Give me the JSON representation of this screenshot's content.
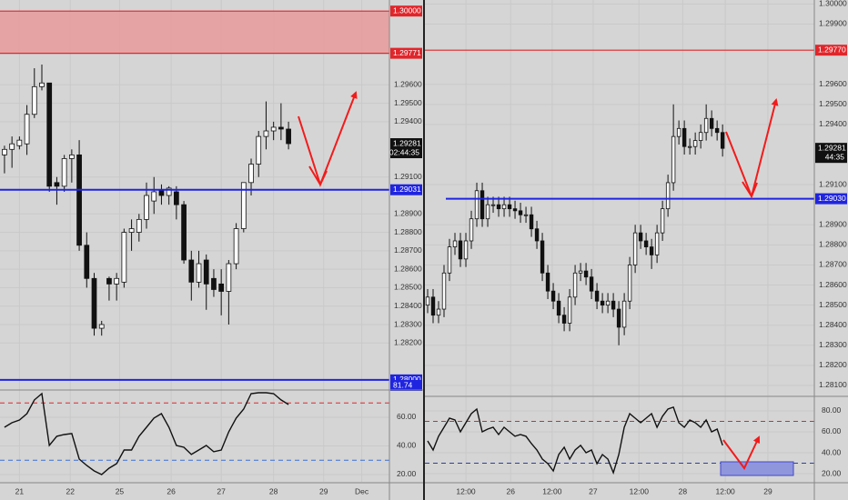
{
  "chart_data": [
    {
      "type": "candlestick",
      "grid": true,
      "open": [
        1.2922,
        1.2925,
        1.2927,
        1.2928,
        1.2944,
        1.2959,
        1.2961,
        1.2907,
        1.2905,
        1.292,
        1.2922,
        1.2873,
        1.2855,
        1.2828,
        1.2855,
        1.2852,
        1.2853,
        1.288,
        1.288,
        1.2887,
        1.2897,
        1.2903,
        1.29,
        1.2902,
        1.2895,
        1.2865,
        1.2853,
        1.2865,
        1.2855,
        1.2852,
        1.2848,
        1.2863,
        1.2882,
        1.2907,
        1.2917,
        1.2932,
        1.2935,
        1.2937,
        1.2936
      ],
      "high": [
        1.2927,
        1.2932,
        1.2932,
        1.2949,
        1.2969,
        1.2971,
        1.2961,
        1.291,
        1.2922,
        1.2925,
        1.293,
        1.288,
        1.2858,
        1.2832,
        1.2856,
        1.2858,
        1.2882,
        1.2887,
        1.289,
        1.2907,
        1.291,
        1.2906,
        1.2905,
        1.2905,
        1.2897,
        1.287,
        1.287,
        1.2868,
        1.286,
        1.286,
        1.2865,
        1.2885,
        1.2907,
        1.292,
        1.2935,
        1.2951,
        1.294,
        1.295,
        1.294
      ],
      "low": [
        1.2912,
        1.2915,
        1.2925,
        1.2922,
        1.2942,
        1.2957,
        1.2902,
        1.2895,
        1.2902,
        1.2907,
        1.287,
        1.285,
        1.2824,
        1.2824,
        1.2843,
        1.2843,
        1.285,
        1.287,
        1.2875,
        1.2882,
        1.289,
        1.2895,
        1.2895,
        1.2887,
        1.2863,
        1.2843,
        1.285,
        1.2838,
        1.2845,
        1.2835,
        1.283,
        1.286,
        1.288,
        1.29,
        1.291,
        1.2925,
        1.293,
        1.293,
        1.2925
      ],
      "close": [
        1.2925,
        1.2928,
        1.293,
        1.2944,
        1.2959,
        1.2961,
        1.2905,
        1.2905,
        1.292,
        1.2922,
        1.2873,
        1.2855,
        1.2828,
        1.283,
        1.2852,
        1.2855,
        1.288,
        1.2882,
        1.2887,
        1.29,
        1.2902,
        1.29,
        1.2904,
        1.2895,
        1.2865,
        1.2853,
        1.2863,
        1.2852,
        1.2849,
        1.2848,
        1.2863,
        1.2882,
        1.2907,
        1.2917,
        1.2932,
        1.2935,
        1.2937,
        1.2936,
        1.29281
      ],
      "xlim": [
        -0.6,
        51.5
      ],
      "xticks": [
        {
          "value": 2,
          "label": "21"
        },
        {
          "value": 8.8,
          "label": "22"
        },
        {
          "value": 15.4,
          "label": "25"
        },
        {
          "value": 22.3,
          "label": "26"
        },
        {
          "value": 29,
          "label": "27"
        },
        {
          "value": 36,
          "label": "28"
        },
        {
          "value": 42.7,
          "label": "29"
        },
        {
          "value": 47.8,
          "label": "Dec"
        }
      ],
      "ylim": [
        1.2795,
        1.3006
      ],
      "yticks": [
        {
          "value": 1.282,
          "label": "1.28200"
        },
        {
          "value": 1.283,
          "label": "1.28300"
        },
        {
          "value": 1.284,
          "label": "1.28400"
        },
        {
          "value": 1.285,
          "label": "1.28500"
        },
        {
          "value": 1.286,
          "label": "1.28600"
        },
        {
          "value": 1.287,
          "label": "1.28700"
        },
        {
          "value": 1.288,
          "label": "1.28800"
        },
        {
          "value": 1.289,
          "label": "1.28900"
        },
        {
          "value": 1.291,
          "label": "1.29100"
        },
        {
          "value": 1.294,
          "label": "1.29400"
        },
        {
          "value": 1.295,
          "label": "1.29500"
        },
        {
          "value": 1.296,
          "label": "1.29600"
        }
      ],
      "zone": {
        "from": 1.29771,
        "to": 1.3,
        "color": "#e89a9a"
      },
      "levels": [
        {
          "value": 1.3,
          "label": "1.30000",
          "color": "#e0262b"
        },
        {
          "value": 1.29771,
          "label": "1.29771",
          "color": "#e0262b"
        },
        {
          "value": 1.29031,
          "label": "1.29031",
          "color": "#1f24e0"
        },
        {
          "value": 1.28,
          "label": "1.28000",
          "color": "#1f24e0"
        }
      ],
      "last": {
        "value": 1.29281,
        "label": "1.29281",
        "countdown": "02:44:35"
      },
      "annotation": "81.74",
      "rsi": {
        "values": [
          53.0,
          56.2,
          58.1,
          62.5,
          72.1,
          76.5,
          40.3,
          46.7,
          47.9,
          48.6,
          30.8,
          26.3,
          22.5,
          20.0,
          24.4,
          27.6,
          37.1,
          37.1,
          46.7,
          53.0,
          59.4,
          62.5,
          53.0,
          40.3,
          39.0,
          34.0,
          37.1,
          40.3,
          35.9,
          37.1,
          49.8,
          59.4,
          65.7,
          76.5,
          77.1,
          77.1,
          76.5,
          72.1,
          68.9
        ],
        "ylim": [
          14.9,
          78.4
        ],
        "yticks": [
          {
            "value": 20,
            "label": "20.00"
          },
          {
            "value": 40,
            "label": "40.00"
          },
          {
            "value": 60,
            "label": "60.00"
          }
        ],
        "levels": [
          {
            "value": 70,
            "color": "#e0262b"
          },
          {
            "value": 30,
            "color": "#3a6fd8"
          }
        ]
      }
    },
    {
      "type": "candlestick",
      "grid": true,
      "open": [
        1.285,
        1.2854,
        1.2845,
        1.2848,
        1.2866,
        1.2879,
        1.2882,
        1.2873,
        1.2882,
        1.2893,
        1.2907,
        1.2893,
        1.29,
        1.29,
        1.2898,
        1.29,
        1.2898,
        1.2897,
        1.2895,
        1.2895,
        1.2888,
        1.2882,
        1.2866,
        1.2857,
        1.2852,
        1.2845,
        1.2841,
        1.2854,
        1.2866,
        1.2867,
        1.2864,
        1.2857,
        1.2852,
        1.285,
        1.2852,
        1.2848,
        1.2839,
        1.2852,
        1.287,
        1.2886,
        1.2882,
        1.2879,
        1.2875,
        1.2886,
        1.2898,
        1.2911,
        1.2934,
        1.2938,
        1.2929,
        1.2929,
        1.2932,
        1.2936,
        1.2943,
        1.2938,
        1.2936
      ],
      "high": [
        1.2858,
        1.2858,
        1.2852,
        1.287,
        1.2883,
        1.2886,
        1.2886,
        1.2886,
        1.2897,
        1.2911,
        1.2911,
        1.2904,
        1.2904,
        1.2904,
        1.2904,
        1.2904,
        1.2902,
        1.2901,
        1.2899,
        1.2899,
        1.2892,
        1.2886,
        1.287,
        1.2861,
        1.2856,
        1.2849,
        1.2858,
        1.287,
        1.2871,
        1.2871,
        1.2868,
        1.2861,
        1.2856,
        1.2856,
        1.2856,
        1.2852,
        1.2856,
        1.2874,
        1.289,
        1.289,
        1.2886,
        1.2883,
        1.289,
        1.2902,
        1.2915,
        1.295,
        1.2942,
        1.2942,
        1.2933,
        1.2936,
        1.294,
        1.295,
        1.2947,
        1.2942,
        1.294
      ],
      "low": [
        1.2846,
        1.2841,
        1.2841,
        1.2844,
        1.2862,
        1.2875,
        1.2869,
        1.2869,
        1.2878,
        1.2889,
        1.2889,
        1.2889,
        1.2896,
        1.2894,
        1.2894,
        1.2894,
        1.2893,
        1.2891,
        1.2891,
        1.2884,
        1.2878,
        1.2862,
        1.2853,
        1.2848,
        1.2841,
        1.2837,
        1.2837,
        1.285,
        1.2862,
        1.286,
        1.2853,
        1.2848,
        1.2846,
        1.2846,
        1.2844,
        1.283,
        1.2835,
        1.2848,
        1.2866,
        1.2878,
        1.2875,
        1.2868,
        1.2871,
        1.2882,
        1.2894,
        1.2907,
        1.293,
        1.2925,
        1.2925,
        1.2925,
        1.2928,
        1.2932,
        1.2934,
        1.2932,
        1.2924
      ],
      "close": [
        1.2854,
        1.2845,
        1.2848,
        1.2866,
        1.2879,
        1.2882,
        1.2873,
        1.2882,
        1.2893,
        1.2907,
        1.2893,
        1.29,
        1.29,
        1.2898,
        1.29,
        1.2898,
        1.2897,
        1.2895,
        1.2895,
        1.2888,
        1.2882,
        1.2866,
        1.2857,
        1.2852,
        1.2845,
        1.2841,
        1.2854,
        1.2866,
        1.2867,
        1.2864,
        1.2857,
        1.2852,
        1.285,
        1.2852,
        1.2848,
        1.2839,
        1.2852,
        1.287,
        1.2886,
        1.2882,
        1.2879,
        1.2875,
        1.2886,
        1.2898,
        1.2911,
        1.2934,
        1.2938,
        1.2929,
        1.2929,
        1.2932,
        1.2936,
        1.2943,
        1.2938,
        1.2936,
        1.29281
      ],
      "xlim": [
        -0.5,
        70.8
      ],
      "xticks": [
        {
          "value": 7,
          "label": "12:00"
        },
        {
          "value": 15.2,
          "label": "26"
        },
        {
          "value": 22.8,
          "label": "12:00"
        },
        {
          "value": 30.3,
          "label": "27"
        },
        {
          "value": 38.7,
          "label": "12:00"
        },
        {
          "value": 46.7,
          "label": "28"
        },
        {
          "value": 54.5,
          "label": "12:00"
        },
        {
          "value": 62.3,
          "label": "29"
        }
      ],
      "ylim": [
        1.2805,
        1.3002
      ],
      "yticks": [
        {
          "value": 1.281,
          "label": "1.28100"
        },
        {
          "value": 1.282,
          "label": "1.28200"
        },
        {
          "value": 1.283,
          "label": "1.28300"
        },
        {
          "value": 1.284,
          "label": "1.28400"
        },
        {
          "value": 1.285,
          "label": "1.28500"
        },
        {
          "value": 1.286,
          "label": "1.28600"
        },
        {
          "value": 1.287,
          "label": "1.28700"
        },
        {
          "value": 1.288,
          "label": "1.28800"
        },
        {
          "value": 1.289,
          "label": "1.28900"
        },
        {
          "value": 1.291,
          "label": "1.29100"
        },
        {
          "value": 1.294,
          "label": "1.29400"
        },
        {
          "value": 1.295,
          "label": "1.29500"
        },
        {
          "value": 1.296,
          "label": "1.29600"
        },
        {
          "value": 1.299,
          "label": "1.29900"
        },
        {
          "value": 1.3,
          "label": "1.30000"
        }
      ],
      "levels": [
        {
          "value": 1.2977,
          "label": "1.29770",
          "color": "#e0262b"
        },
        {
          "value": 1.2903,
          "label": "1.29030",
          "color": "#1f24e0"
        }
      ],
      "last": {
        "value": 1.29281,
        "label": "1.29281",
        "countdown": "44:35"
      },
      "rsi": {
        "values": [
          51.3,
          42.6,
          55.7,
          64.3,
          73.0,
          71.3,
          60.0,
          68.7,
          77.4,
          81.7,
          60.0,
          62.6,
          64.3,
          57.4,
          64.3,
          60.0,
          55.7,
          57.4,
          55.7,
          48.7,
          42.6,
          33.9,
          29.6,
          22.6,
          38.3,
          45.2,
          33.9,
          42.6,
          47.0,
          40.0,
          42.6,
          29.6,
          38.3,
          33.9,
          20.9,
          38.3,
          64.3,
          77.4,
          73.0,
          68.7,
          73.0,
          77.4,
          64.3,
          74.8,
          81.7,
          83.5,
          68.7,
          64.3,
          71.3,
          68.7,
          64.3,
          71.3,
          60.0,
          62.6,
          47.0
        ],
        "ylim": [
          12.2,
          93
        ],
        "yticks": [
          {
            "value": 20,
            "label": "20.00"
          },
          {
            "value": 40,
            "label": "40.00"
          },
          {
            "value": 60,
            "label": "60.00"
          },
          {
            "value": 80,
            "label": "80.00"
          }
        ],
        "levels": [
          {
            "value": 70,
            "color": "#e0262b"
          },
          {
            "value": 30,
            "color": "#2b3fa8"
          }
        ]
      }
    }
  ]
}
